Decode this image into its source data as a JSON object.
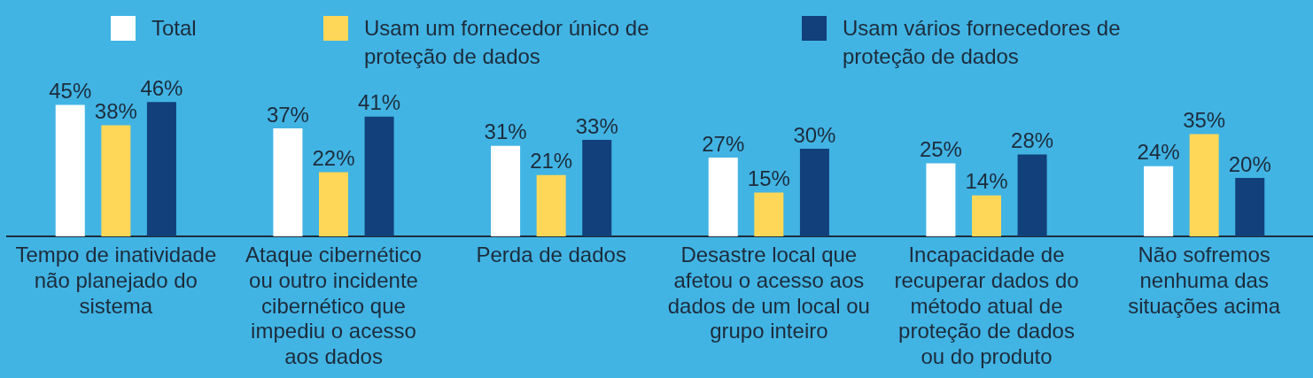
{
  "chart_data": {
    "type": "bar",
    "categories": [
      "Tempo de inatividade não planejado do sistema",
      "Ataque cibernético ou outro incidente cibernético que impediu o acesso aos dados",
      "Perda de dados",
      "Desastre local que afetou o acesso aos dados de um local ou grupo inteiro",
      "Incapacidade de recuperar dados do método atual de proteção de dados ou do produto",
      "Não sofremos nenhuma das situações acima"
    ],
    "series": [
      {
        "name": "Total",
        "color": "#ffffff",
        "values": [
          45,
          37,
          31,
          27,
          25,
          24
        ],
        "value_labels": [
          "45%",
          "37%",
          "31%",
          "27%",
          "25%",
          "24%"
        ]
      },
      {
        "name": "Usam um fornecedor único de proteção de dados",
        "color": "#fed758",
        "values": [
          38,
          22,
          21,
          15,
          14,
          35
        ],
        "value_labels": [
          "38%",
          "22%",
          "21%",
          "15%",
          "14%",
          "35%"
        ]
      },
      {
        "name": "Usam vários fornecedores de proteção de dados",
        "color": "#12407a",
        "values": [
          46,
          41,
          33,
          30,
          28,
          20
        ],
        "value_labels": [
          "46%",
          "41%",
          "33%",
          "30%",
          "28%",
          "20%"
        ]
      }
    ],
    "legend": "top",
    "grid": false,
    "relative": false
  }
}
